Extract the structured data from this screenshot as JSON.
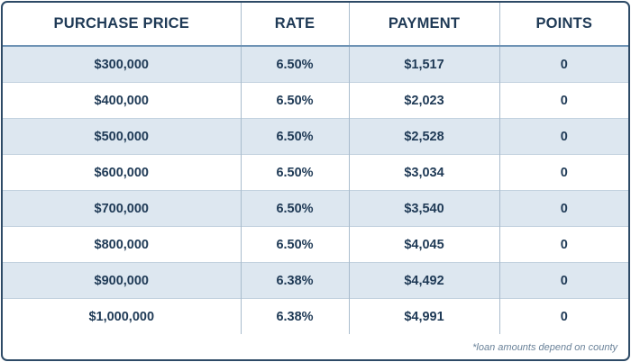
{
  "table": {
    "headers": [
      "PURCHASE PRICE",
      "RATE",
      "PAYMENT",
      "POINTS"
    ],
    "rows": [
      [
        "$300,000",
        "6.50%",
        "$1,517",
        "0"
      ],
      [
        "$400,000",
        "6.50%",
        "$2,023",
        "0"
      ],
      [
        "$500,000",
        "6.50%",
        "$2,528",
        "0"
      ],
      [
        "$600,000",
        "6.50%",
        "$3,034",
        "0"
      ],
      [
        "$700,000",
        "6.50%",
        "$3,540",
        "0"
      ],
      [
        "$800,000",
        "6.50%",
        "$4,045",
        "0"
      ],
      [
        "$900,000",
        "6.38%",
        "$4,492",
        "0"
      ],
      [
        "$1,000,000",
        "6.38%",
        "$4,991",
        "0"
      ]
    ]
  },
  "footnote": "*loan amounts depend on county",
  "colors": {
    "border": "#2d4a66",
    "header_text": "#1f3a56",
    "row_shade": "#dde7f0",
    "footnote_text": "#6a8299"
  }
}
